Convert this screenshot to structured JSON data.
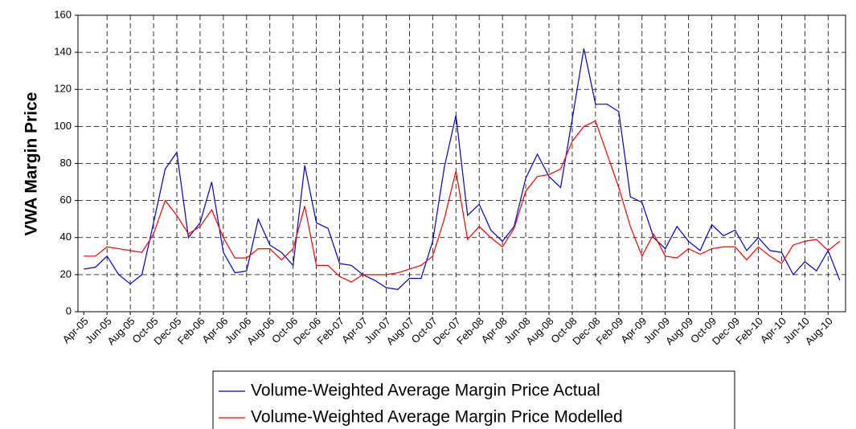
{
  "chart_data": {
    "type": "line",
    "y_label": "VWA Margin Price",
    "categories": [
      "Apr-05",
      null,
      "Jun-05",
      null,
      "Aug-05",
      null,
      "Oct-05",
      null,
      "Dec-05",
      null,
      "Feb-06",
      null,
      "Apr-06",
      null,
      "Jun-06",
      null,
      "Aug-06",
      null,
      "Oct-06",
      null,
      "Dec-06",
      null,
      "Feb-07",
      null,
      "Apr-07",
      null,
      "Jun-07",
      null,
      "Aug-07",
      null,
      "Oct-07",
      null,
      "Dec-07",
      null,
      "Feb-08",
      null,
      "Apr-08",
      null,
      "Jun-08",
      null,
      "Aug-08",
      null,
      "Oct-08",
      null,
      "Dec-08",
      null,
      "Feb-09",
      null,
      "Apr-09",
      null,
      "Jun-09",
      null,
      "Aug-09",
      null,
      "Oct-09",
      null,
      "Dec-09",
      null,
      "Feb-10",
      null,
      "Apr-10",
      null,
      "Jun-10",
      null,
      "Aug-10",
      null
    ],
    "series": [
      {
        "name": "Volume-Weighted Average Margin Price Actual",
        "color": "#0000cc",
        "values": [
          23,
          24,
          30,
          20,
          15,
          20,
          48,
          77,
          86,
          40,
          48,
          70,
          32,
          21,
          22,
          50,
          36,
          32,
          25,
          79,
          48,
          45,
          26,
          25,
          20,
          17,
          13,
          12,
          18,
          18,
          38,
          78,
          106,
          52,
          58,
          44,
          38,
          46,
          72,
          85,
          73,
          67,
          104,
          142,
          112,
          112,
          108,
          62,
          59,
          40,
          34,
          46,
          38,
          33,
          47,
          41,
          44,
          33,
          40,
          33,
          32,
          20,
          27,
          22,
          33,
          17
        ]
      },
      {
        "name": "Volume-Weighted Average Margin Price Modelled",
        "color": "#ff0000",
        "values": [
          30,
          30,
          35,
          34,
          33,
          32,
          42,
          60,
          52,
          42,
          46,
          55,
          40,
          29,
          29,
          34,
          34,
          28,
          34,
          57,
          25,
          25,
          19,
          16,
          20,
          20,
          20,
          21,
          23,
          25,
          30,
          50,
          76,
          39,
          46,
          40,
          35,
          45,
          65,
          73,
          74,
          77,
          92,
          100,
          103,
          85,
          67,
          46,
          30,
          42,
          30,
          29,
          34,
          31,
          34,
          35,
          35,
          28,
          35,
          30,
          26,
          36,
          38,
          39,
          33,
          38
        ]
      }
    ],
    "ylim": [
      0,
      160
    ],
    "yticks": [
      0,
      20,
      40,
      60,
      80,
      100,
      120,
      140,
      160
    ],
    "grid": true
  }
}
